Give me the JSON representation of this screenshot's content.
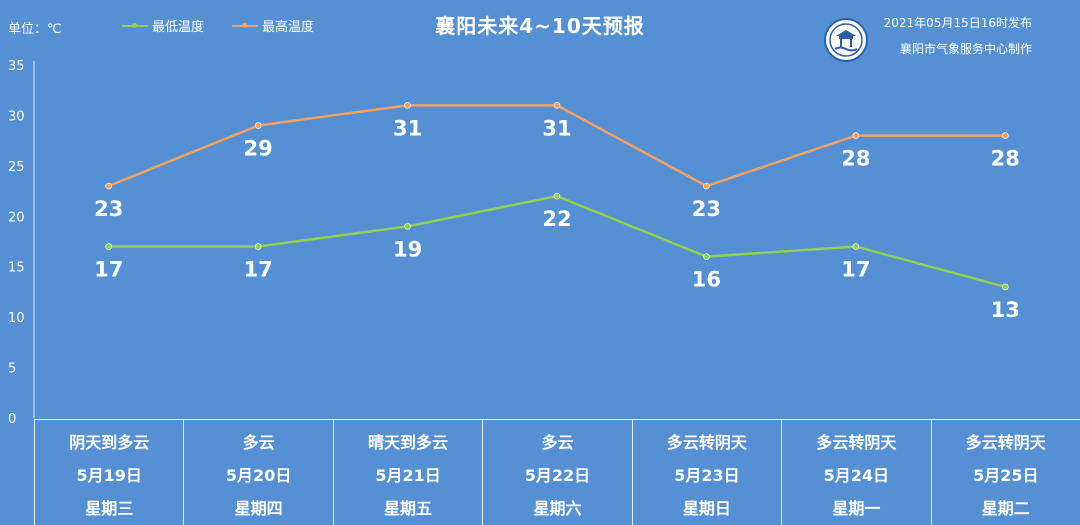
{
  "header": {
    "unit_label": "单位：℃",
    "title": "襄阳未来4~10天预报",
    "publish_time": "2021年05月15日16时发布",
    "maker": "襄阳市气象服务中心制作"
  },
  "colors": {
    "background": "#5590d4",
    "low_line": "#92d050",
    "high_line": "#f4a261",
    "gridline": "#7aa7de",
    "text": "#ffffff"
  },
  "chart_data": {
    "type": "line",
    "title": "襄阳未来4~10天预报",
    "x": [
      "5月19日",
      "5月20日",
      "5月21日",
      "5月22日",
      "5月23日",
      "5月24日",
      "5月25日"
    ],
    "series": [
      {
        "name": "最低温度",
        "values": [
          17,
          17,
          19,
          22,
          16,
          17,
          13
        ]
      },
      {
        "name": "最高温度",
        "values": [
          23,
          29,
          31,
          31,
          23,
          28,
          28
        ]
      }
    ],
    "ylim": [
      0,
      35
    ],
    "yticks": [
      "0",
      "5",
      "10",
      "15",
      "20",
      "25",
      "30",
      "35"
    ],
    "grid": false,
    "legend": "top-left",
    "data_labels": true
  },
  "days": [
    {
      "weather": "阴天到多云",
      "date": "5月19日",
      "weekday": "星期三"
    },
    {
      "weather": "多云",
      "date": "5月20日",
      "weekday": "星期四"
    },
    {
      "weather": "晴天到多云",
      "date": "5月21日",
      "weekday": "星期五"
    },
    {
      "weather": "多云",
      "date": "5月22日",
      "weekday": "星期六"
    },
    {
      "weather": "多云转阴天",
      "date": "5月23日",
      "weekday": "星期日"
    },
    {
      "weather": "多云转阴天",
      "date": "5月24日",
      "weekday": "星期一"
    },
    {
      "weather": "多云转阴天",
      "date": "5月25日",
      "weekday": "星期二"
    }
  ]
}
